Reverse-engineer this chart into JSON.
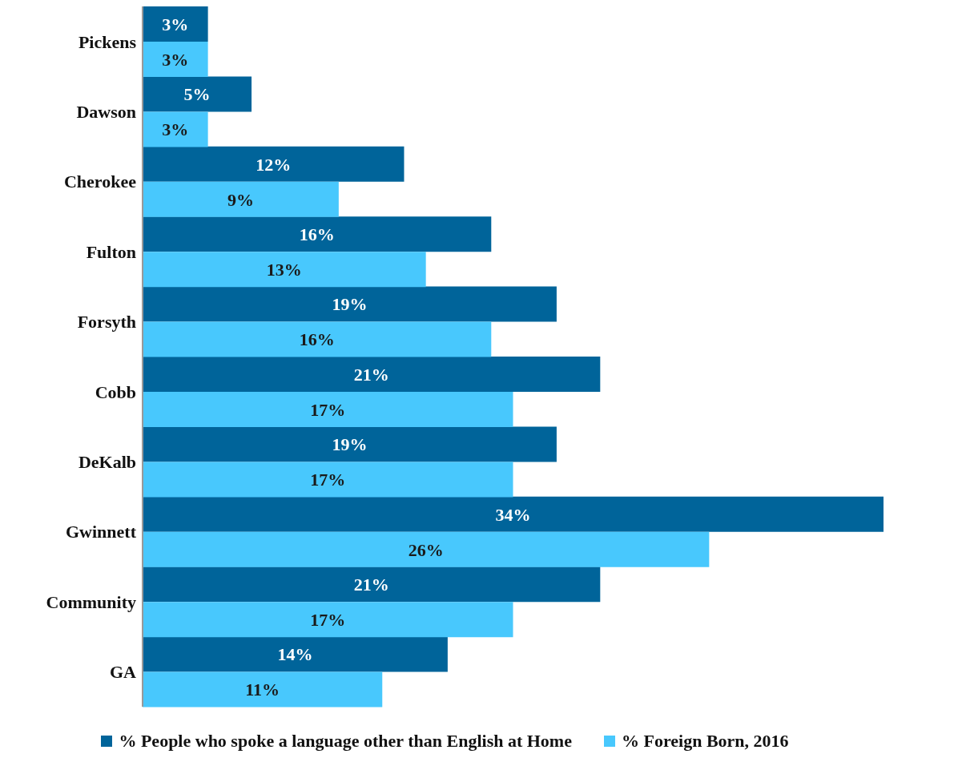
{
  "chart_data": {
    "type": "bar",
    "orientation": "horizontal",
    "categories": [
      "Pickens",
      "Dawson",
      "Cherokee",
      "Fulton",
      "Forsyth",
      "Cobb",
      "DeKalb",
      "Gwinnett",
      "Community",
      "GA"
    ],
    "series": [
      {
        "name": "% People who spoke a language other than English at Home",
        "color": "#00649a",
        "values": [
          3,
          5,
          12,
          16,
          19,
          21,
          19,
          34,
          21,
          14
        ],
        "value_labels": [
          "3%",
          "5%",
          "12%",
          "16%",
          "19%",
          "21%",
          "19%",
          "34%",
          "21%",
          "14%"
        ]
      },
      {
        "name": "% Foreign Born, 2016",
        "color": "#48c8fd",
        "values": [
          3,
          3,
          9,
          13,
          16,
          17,
          17,
          26,
          17,
          11
        ],
        "value_labels": [
          "3%",
          "3%",
          "9%",
          "13%",
          "16%",
          "17%",
          "17%",
          "26%",
          "17%",
          "11%"
        ]
      }
    ],
    "tick_labels": "y",
    "legend": "bottom"
  }
}
